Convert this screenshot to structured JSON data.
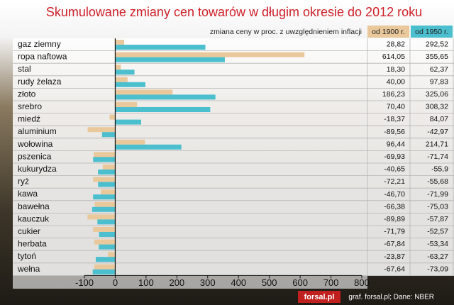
{
  "chart_data": {
    "type": "bar",
    "orientation": "horizontal",
    "title": "Skumulowane zmiany cen towarów w długim okresie do 2012 roku",
    "subtitle": "zmiana ceny w proc. z uwzględnieniem inflacji",
    "categories": [
      "gaz ziemny",
      "ropa naftowa",
      "stal",
      "rudy żelaza",
      "złoto",
      "srebro",
      "miedź",
      "aluminium",
      "wołowina",
      "pszenica",
      "kukurydza",
      "ryż",
      "kawa",
      "bawełna",
      "kauczuk",
      "cukier",
      "herbata",
      "tytoń",
      "wełna"
    ],
    "series": [
      {
        "name": "od 1900 r.",
        "color": "#e9c89b",
        "values": [
          28.82,
          614.05,
          18.3,
          40.0,
          186.23,
          70.4,
          -18.37,
          -89.56,
          96.44,
          -69.93,
          -40.65,
          -72.21,
          -46.7,
          -66.38,
          -89.89,
          -71.79,
          -67.84,
          -23.87,
          -67.64
        ],
        "value_labels": [
          "28,82",
          "614,05",
          "18,30",
          "40,00",
          "186,23",
          "70,40",
          "-18,37",
          "-89,56",
          "96,44",
          "-69,93",
          "-40,65",
          "-72,21",
          "-46,70",
          "-66,38",
          "-89,89",
          "-71,79",
          "-67,84",
          "-23,87",
          "-67,64"
        ]
      },
      {
        "name": "od 1950 r.",
        "color": "#4cbfce",
        "values": [
          292.52,
          355.65,
          62.37,
          97.83,
          325.06,
          308.32,
          84.07,
          -42.97,
          214.71,
          -71.74,
          -55.9,
          -55.68,
          -71.99,
          -75.03,
          -57.87,
          -52.57,
          -53.34,
          -63.27,
          -73.09
        ],
        "value_labels": [
          "292,52",
          "355,65",
          "62,37",
          "97,83",
          "325,06",
          "308,32",
          "84,07",
          "-42,97",
          "214,71",
          "-71,74",
          "-55,9",
          "-55,68",
          "-71,99",
          "-75,03",
          "-57,87",
          "-52,57",
          "-53,34",
          "-63,27",
          "-73,09"
        ]
      }
    ],
    "xlim": [
      -100,
      800
    ],
    "xticks": [
      -100,
      0,
      100,
      200,
      300,
      400,
      500,
      600,
      700,
      800
    ],
    "logo": "forsal.pl",
    "source": "graf. forsal.pl;  Dane: NBER"
  }
}
